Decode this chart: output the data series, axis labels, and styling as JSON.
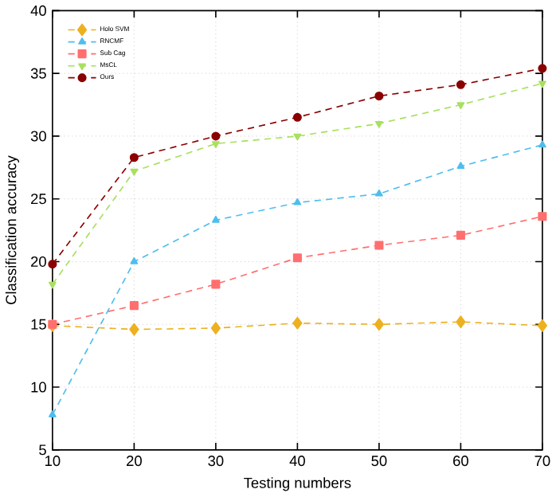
{
  "chart_data": {
    "type": "line",
    "xlabel": "Testing numbers",
    "ylabel": "Classification accuracy",
    "x": [
      10,
      20,
      30,
      40,
      50,
      60,
      70
    ],
    "series": [
      {
        "name": "Holo SVM",
        "color": "#edb120",
        "marker": "diamond",
        "values": [
          14.9,
          14.6,
          14.7,
          15.1,
          15.0,
          15.2,
          14.9
        ]
      },
      {
        "name": "RNCMF",
        "color": "#4dbeee",
        "marker": "triangle",
        "values": [
          7.8,
          20.0,
          23.3,
          24.7,
          25.4,
          27.6,
          29.3
        ]
      },
      {
        "name": "Sub Cag",
        "color": "#ff6f6f",
        "marker": "square",
        "values": [
          15.0,
          16.5,
          18.2,
          20.3,
          21.3,
          22.1,
          23.6
        ]
      },
      {
        "name": "MsCL",
        "color": "#a8e05f",
        "marker": "triangle down",
        "values": [
          18.2,
          27.2,
          29.4,
          30.0,
          31.0,
          32.5,
          34.2
        ]
      },
      {
        "name": "Ours",
        "color": "#8b0000",
        "marker": "circle",
        "values": [
          19.8,
          28.3,
          30.0,
          31.5,
          33.2,
          34.1,
          35.4
        ]
      }
    ],
    "xlim": [
      10,
      70
    ],
    "ylim": [
      5,
      40
    ],
    "xticks": [
      10,
      20,
      30,
      40,
      50,
      60,
      70
    ],
    "yticks": [
      5,
      10,
      15,
      20,
      25,
      30,
      35,
      40
    ],
    "grid": true,
    "legend": "top left",
    "line_style": "dashed"
  }
}
